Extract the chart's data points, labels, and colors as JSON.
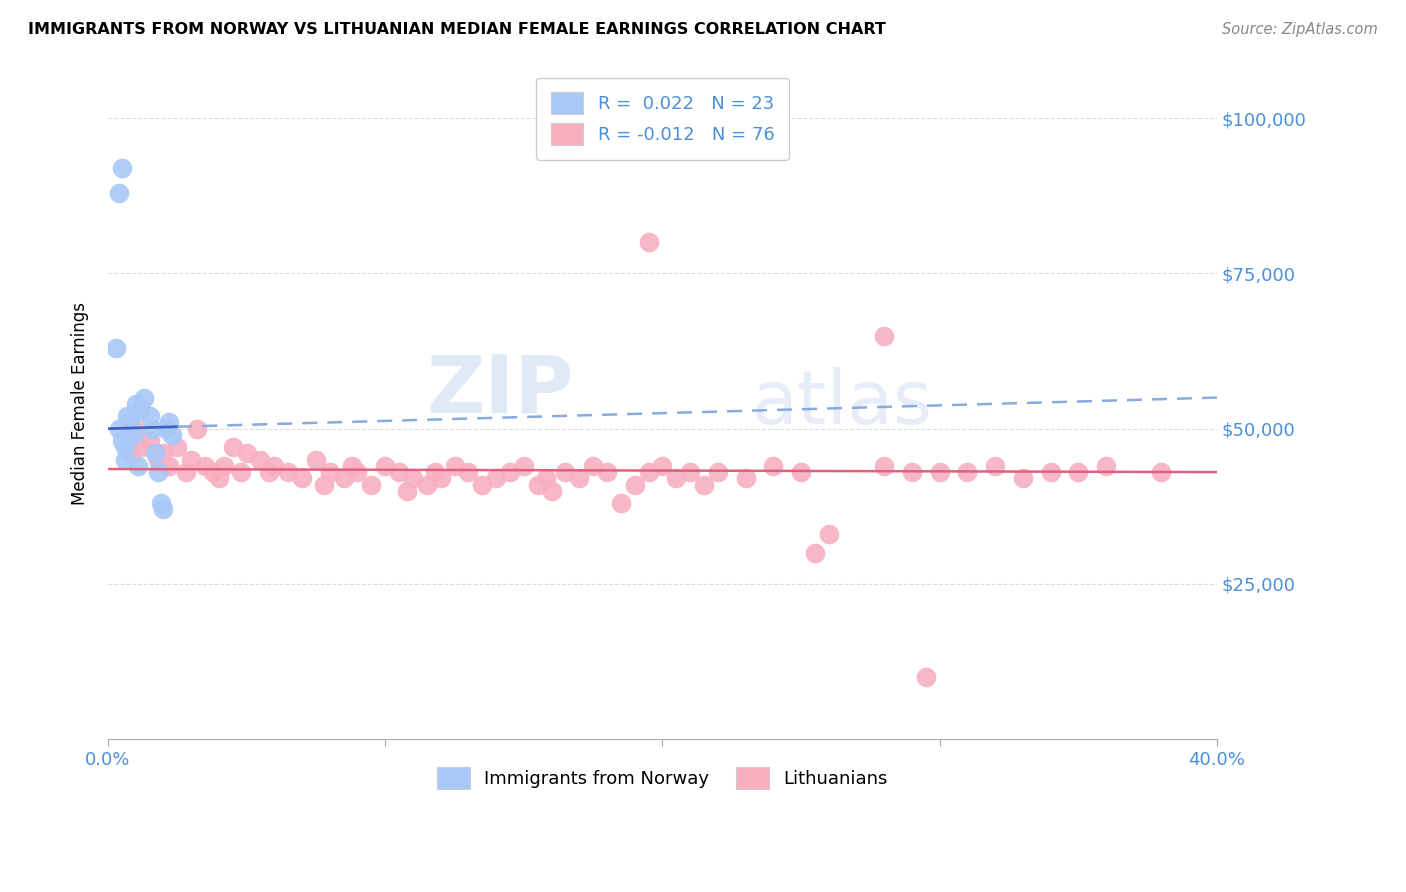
{
  "title": "IMMIGRANTS FROM NORWAY VS LITHUANIAN MEDIAN FEMALE EARNINGS CORRELATION CHART",
  "source": "Source: ZipAtlas.com",
  "ylabel": "Median Female Earnings",
  "ytick_labels": [
    "$25,000",
    "$50,000",
    "$75,000",
    "$100,000"
  ],
  "ytick_values": [
    25000,
    50000,
    75000,
    100000
  ],
  "xlim": [
    0.0,
    0.4
  ],
  "ylim": [
    0,
    108000
  ],
  "legend_norway_R": "0.022",
  "legend_norway_N": "23",
  "legend_lith_R": "-0.012",
  "legend_lith_N": "76",
  "norway_color": "#a8c8f8",
  "norway_edge_color": "#88aaee",
  "lith_color": "#f8b0c0",
  "lith_edge_color": "#e890a8",
  "norway_line_color": "#4060c0",
  "norway_dash_color": "#88aadd",
  "lith_line_color": "#e06080",
  "background_color": "#ffffff",
  "grid_color": "#dddddd",
  "watermark_text": "ZIP",
  "watermark_text2": "atlas",
  "xtick_positions": [
    0.0,
    0.1,
    0.2,
    0.3,
    0.4
  ],
  "norway_x": [
    0.004,
    0.005,
    0.006,
    0.007,
    0.008,
    0.009,
    0.01,
    0.011,
    0.012,
    0.013,
    0.015,
    0.016,
    0.017,
    0.018,
    0.019,
    0.02,
    0.021,
    0.022,
    0.023,
    0.004,
    0.005,
    0.003,
    0.006
  ],
  "norway_y": [
    50000,
    48000,
    47000,
    52000,
    51000,
    49000,
    54000,
    44000,
    53000,
    55000,
    52000,
    50000,
    46000,
    43000,
    38000,
    37000,
    50000,
    51000,
    49000,
    88000,
    92000,
    63000,
    45000
  ],
  "lith_x": [
    0.008,
    0.01,
    0.012,
    0.015,
    0.018,
    0.02,
    0.022,
    0.025,
    0.028,
    0.03,
    0.032,
    0.035,
    0.038,
    0.04,
    0.042,
    0.045,
    0.048,
    0.05,
    0.055,
    0.058,
    0.06,
    0.065,
    0.07,
    0.075,
    0.078,
    0.08,
    0.085,
    0.088,
    0.09,
    0.095,
    0.1,
    0.105,
    0.108,
    0.11,
    0.115,
    0.118,
    0.12,
    0.125,
    0.13,
    0.135,
    0.14,
    0.145,
    0.15,
    0.155,
    0.158,
    0.16,
    0.165,
    0.17,
    0.175,
    0.18,
    0.185,
    0.19,
    0.195,
    0.2,
    0.205,
    0.21,
    0.215,
    0.22,
    0.23,
    0.24,
    0.25,
    0.255,
    0.26,
    0.28,
    0.29,
    0.3,
    0.31,
    0.32,
    0.33,
    0.34,
    0.35,
    0.195,
    0.28,
    0.36,
    0.38,
    0.295
  ],
  "lith_y": [
    46000,
    50000,
    47000,
    48000,
    45000,
    46000,
    44000,
    47000,
    43000,
    45000,
    50000,
    44000,
    43000,
    42000,
    44000,
    47000,
    43000,
    46000,
    45000,
    43000,
    44000,
    43000,
    42000,
    45000,
    41000,
    43000,
    42000,
    44000,
    43000,
    41000,
    44000,
    43000,
    40000,
    42000,
    41000,
    43000,
    42000,
    44000,
    43000,
    41000,
    42000,
    43000,
    44000,
    41000,
    42000,
    40000,
    43000,
    42000,
    44000,
    43000,
    38000,
    41000,
    43000,
    44000,
    42000,
    43000,
    41000,
    43000,
    42000,
    44000,
    43000,
    30000,
    33000,
    44000,
    43000,
    43000,
    43000,
    44000,
    42000,
    43000,
    43000,
    80000,
    65000,
    44000,
    43000,
    10000
  ],
  "norway_trend_x0": 0.0,
  "norway_trend_y0": 50000,
  "norway_trend_x1": 0.4,
  "norway_trend_y1": 55000,
  "lith_trend_x0": 0.0,
  "lith_trend_y0": 43500,
  "lith_trend_x1": 0.4,
  "lith_trend_y1": 43000
}
